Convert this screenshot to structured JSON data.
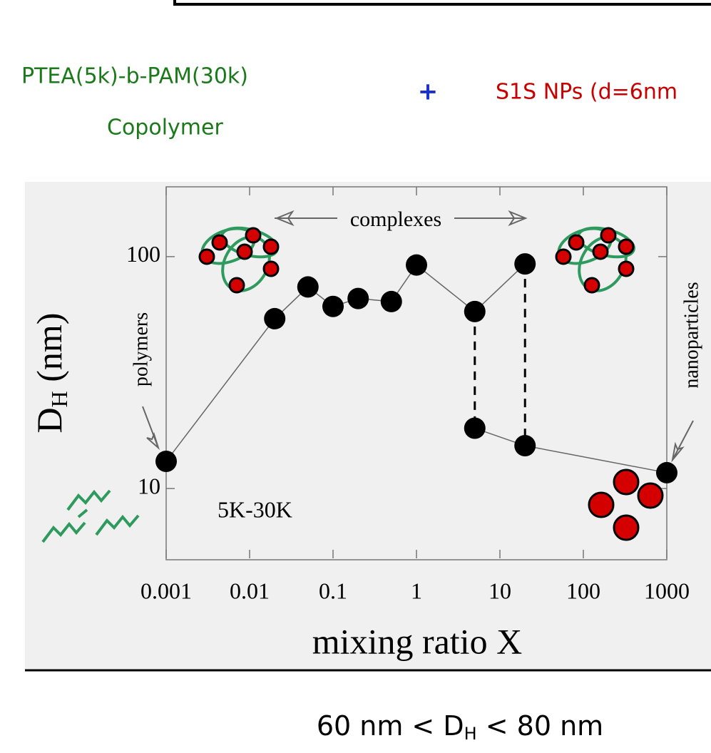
{
  "header": {
    "polymer": "PTEA(5k)-b-PAM(30k)",
    "polymer_kind": "Copolymer",
    "plus": "+",
    "particles": "S1S NPs (d=6nm"
  },
  "chart_data": {
    "type": "line",
    "xlabel": "mixing ratio X",
    "ylabel": {
      "main": "D",
      "sub": "H",
      "rest": " (nm)"
    },
    "xscale": "log",
    "yscale": "log",
    "xlim": [
      0.001,
      1000
    ],
    "ylim": [
      5,
      200
    ],
    "xticks": [
      0.001,
      0.01,
      0.1,
      1,
      10,
      100,
      1000
    ],
    "yticks": [
      10,
      100
    ],
    "annotations": {
      "complexes": "complexes",
      "polymers": "polymers",
      "nanoparticles": "nanoparticles",
      "sample": "5K-30K"
    },
    "series": [
      {
        "color": "#000000",
        "x": [
          0.001,
          0.02,
          0.05,
          0.1,
          0.2,
          0.5,
          1,
          5,
          20
        ],
        "values": [
          13.1,
          54,
          74,
          61,
          66,
          64,
          92,
          58,
          93
        ]
      },
      {
        "color": "#000000",
        "x": [
          5,
          20,
          1000
        ],
        "values": [
          18.2,
          15.3,
          11.7
        ]
      }
    ]
  },
  "footer": {
    "parts": [
      "60 nm < D",
      "H",
      " < 80 nm"
    ]
  }
}
